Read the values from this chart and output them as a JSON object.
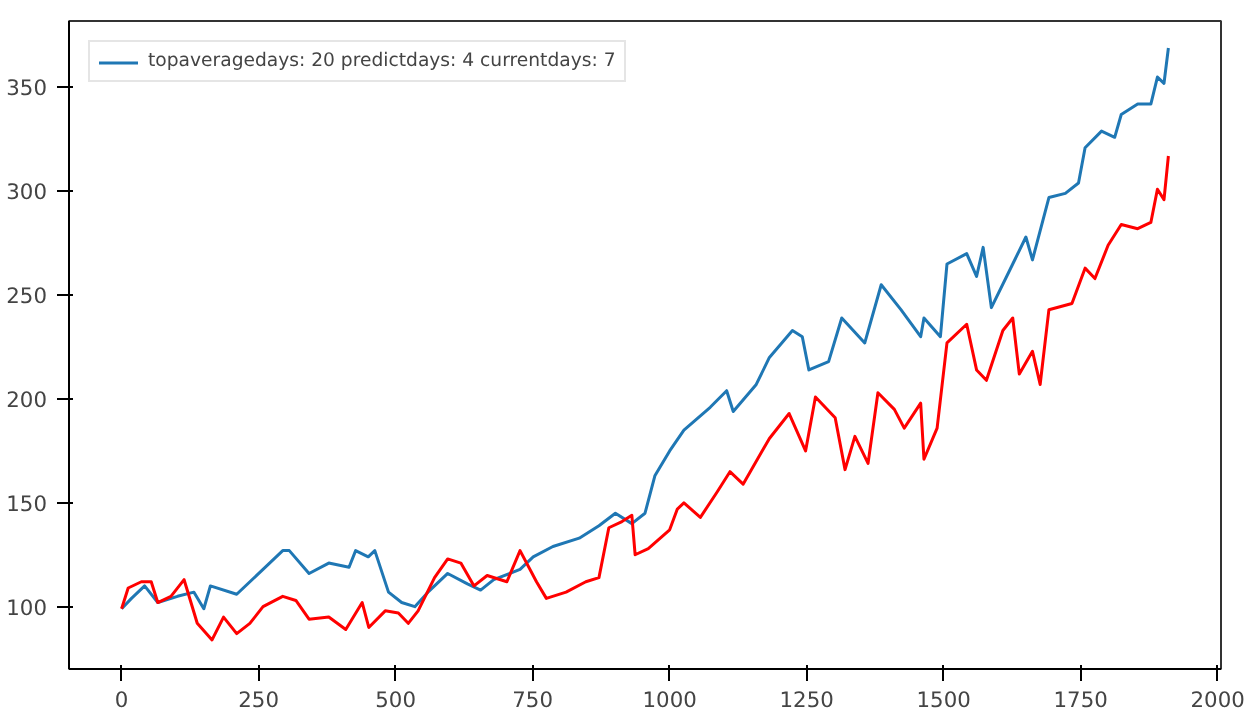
{
  "chart_data": {
    "type": "line",
    "xlim": [
      -96,
      2006
    ],
    "ylim": [
      70,
      382
    ],
    "xticks": [
      0,
      250,
      500,
      750,
      1000,
      1250,
      1500,
      1750,
      2000
    ],
    "yticks": [
      100,
      150,
      200,
      250,
      300,
      350
    ],
    "grid": false,
    "legend": "top left",
    "line_style": "solid",
    "marker": "none",
    "series": [
      {
        "name": "topaveragedays: 20 predictdays: 4 currentdays: 7",
        "color": "#1f77b4",
        "x": [
          0,
          18,
          42,
          66,
          102,
          132,
          150,
          162,
          210,
          258,
          294,
          306,
          342,
          378,
          415,
          427,
          450,
          462,
          487,
          511,
          535,
          559,
          595,
          631,
          655,
          679,
          727,
          751,
          787,
          835,
          871,
          901,
          931,
          955,
          973,
          1000,
          1026,
          1074,
          1104,
          1116,
          1158,
          1182,
          1224,
          1242,
          1254,
          1290,
          1314,
          1356,
          1386,
          1422,
          1458,
          1464,
          1494,
          1506,
          1542,
          1560,
          1572,
          1587,
          1626,
          1650,
          1662,
          1692,
          1722,
          1746,
          1758,
          1788,
          1812,
          1824,
          1854,
          1878,
          1890,
          1902,
          1910
        ],
        "values": [
          99,
          104,
          110,
          102,
          105,
          107,
          99,
          110,
          106,
          118,
          127,
          127,
          116,
          121,
          119,
          127,
          124,
          127,
          107,
          102,
          100,
          107,
          116,
          111,
          108,
          113,
          118,
          124,
          129,
          133,
          139,
          145,
          140,
          145,
          163,
          175,
          185,
          196,
          204,
          194,
          207,
          220,
          233,
          230,
          214,
          218,
          239,
          227,
          255,
          243,
          230,
          239,
          230,
          265,
          270,
          259,
          273,
          244,
          265,
          278,
          267,
          297,
          299,
          304,
          321,
          329,
          326,
          337,
          342,
          342,
          355,
          352,
          369
        ]
      },
      {
        "color": "#ff0000",
        "x": [
          0,
          12,
          36,
          54,
          66,
          90,
          114,
          138,
          165,
          186,
          210,
          234,
          258,
          294,
          318,
          342,
          378,
          409,
          439,
          451,
          481,
          505,
          523,
          541,
          571,
          595,
          619,
          643,
          667,
          703,
          727,
          757,
          775,
          811,
          847,
          871,
          889,
          913,
          931,
          937,
          961,
          1000,
          1014,
          1026,
          1056,
          1086,
          1110,
          1134,
          1182,
          1218,
          1248,
          1266,
          1302,
          1320,
          1338,
          1362,
          1380,
          1410,
          1428,
          1458,
          1464,
          1488,
          1506,
          1542,
          1560,
          1578,
          1608,
          1626,
          1638,
          1662,
          1676,
          1692,
          1734,
          1758,
          1776,
          1800,
          1824,
          1854,
          1878,
          1890,
          1902,
          1910
        ],
        "values": [
          99,
          109,
          112,
          112,
          102,
          105,
          113,
          92,
          84,
          95,
          87,
          92,
          100,
          105,
          103,
          94,
          95,
          89,
          102,
          90,
          98,
          97,
          92,
          98,
          114,
          123,
          121,
          110,
          115,
          112,
          127,
          112,
          104,
          107,
          112,
          114,
          138,
          141,
          144,
          125,
          128,
          137,
          147,
          150,
          143,
          155,
          165,
          159,
          181,
          193,
          175,
          201,
          191,
          166,
          182,
          169,
          203,
          195,
          186,
          198,
          171,
          186,
          227,
          236,
          214,
          209,
          233,
          239,
          212,
          223,
          207,
          243,
          246,
          263,
          258,
          274,
          284,
          282,
          285,
          301,
          296,
          317
        ]
      }
    ]
  }
}
